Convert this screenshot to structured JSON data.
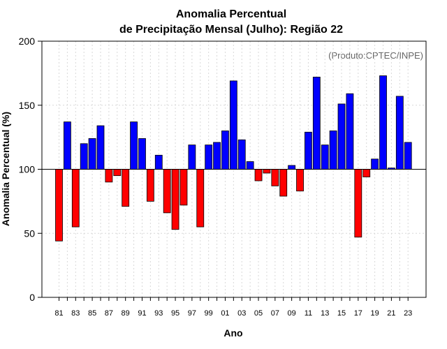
{
  "chart_data": {
    "type": "bar",
    "title_line1": "Anomalia Percentual",
    "title_line2": "de Precipitação Mensal (Julho): Região 22",
    "xlabel": "Ano",
    "ylabel": "Anomalia Percentual (%)",
    "credit": "(Produto:CPTEC/INPE)",
    "baseline": 100,
    "ylim": [
      0,
      200
    ],
    "yticks": [
      0,
      50,
      100,
      150,
      200
    ],
    "above_color": "#0000ff",
    "below_color": "#ff0000",
    "categories": [
      "81",
      "82",
      "83",
      "84",
      "85",
      "86",
      "87",
      "88",
      "89",
      "90",
      "91",
      "92",
      "93",
      "94",
      "95",
      "96",
      "97",
      "98",
      "99",
      "00",
      "01",
      "02",
      "03",
      "04",
      "05",
      "06",
      "07",
      "08",
      "09",
      "10",
      "11",
      "12",
      "13",
      "14",
      "15",
      "16",
      "17",
      "18",
      "19",
      "20",
      "21",
      "22",
      "23"
    ],
    "xtick_labels": [
      "81",
      "83",
      "85",
      "87",
      "89",
      "91",
      "93",
      "95",
      "97",
      "99",
      "01",
      "03",
      "05",
      "07",
      "09",
      "11",
      "13",
      "15",
      "17",
      "19",
      "21",
      "23"
    ],
    "values": [
      44,
      137,
      55,
      120,
      124,
      134,
      90,
      95,
      71,
      137,
      124,
      75,
      111,
      66,
      53,
      72,
      119,
      55,
      119,
      121,
      130,
      169,
      123,
      106,
      91,
      97,
      87,
      79,
      103,
      83,
      129,
      172,
      119,
      130,
      151,
      159,
      47,
      94,
      108,
      173,
      101,
      157,
      121
    ]
  }
}
